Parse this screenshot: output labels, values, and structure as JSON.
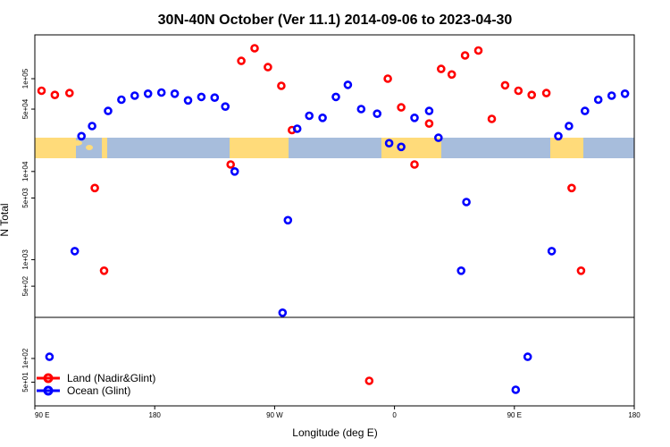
{
  "chart_data": {
    "type": "scatter",
    "title": "30N-40N October (Ver 11.1)   2014-09-06 to 2023-04-30",
    "xlabel": "Longitude (deg E)",
    "ylabel": "N Total",
    "x_ticks": [
      {
        "value": 90,
        "label": "90 E"
      },
      {
        "value": 180,
        "label": "180"
      },
      {
        "value": 270,
        "label": "90 W"
      },
      {
        "value": 360,
        "label": "0"
      },
      {
        "value": 450,
        "label": "90 E"
      },
      {
        "value": 540,
        "label": "180"
      }
    ],
    "upper_y_ticks": [
      {
        "value": 50000,
        "label": "5e+04"
      },
      {
        "value": 100000,
        "label": "1e+05"
      }
    ],
    "middle_y_ticks": [
      {
        "value": 500,
        "label": "5e+02"
      },
      {
        "value": 1000,
        "label": "1e+03"
      },
      {
        "value": 5000,
        "label": "5e+03"
      },
      {
        "value": 10000,
        "label": "1e+04"
      }
    ],
    "lower_y_ticks": [
      {
        "value": 50,
        "label": "5e+01"
      },
      {
        "value": 100,
        "label": "1e+02"
      }
    ],
    "series": [
      {
        "name": "Land (Nadir&Glint)",
        "color": "#ff0000",
        "points": [
          [
            95,
            76000
          ],
          [
            105,
            69000
          ],
          [
            116,
            72000
          ],
          [
            135,
            6500
          ],
          [
            142,
            750
          ],
          [
            237,
            12000
          ],
          [
            245,
            150000
          ],
          [
            255,
            200000
          ],
          [
            265,
            130000
          ],
          [
            275,
            85000
          ],
          [
            283,
            31000
          ],
          [
            341,
            52
          ],
          [
            355,
            100000
          ],
          [
            365,
            52000
          ],
          [
            375,
            12000
          ],
          [
            386,
            36000
          ],
          [
            395,
            125000
          ],
          [
            403,
            110000
          ],
          [
            413,
            170000
          ],
          [
            423,
            190000
          ],
          [
            433,
            40000
          ],
          [
            443,
            86000
          ],
          [
            453,
            76000
          ],
          [
            463,
            69000
          ],
          [
            474,
            72000
          ],
          [
            493,
            6500
          ],
          [
            500,
            750
          ]
        ]
      },
      {
        "name": "Ocean (Glint)",
        "color": "#0000ff",
        "points": [
          [
            101,
            105
          ],
          [
            120,
            1250
          ],
          [
            125,
            27000
          ],
          [
            133,
            34000
          ],
          [
            145,
            48000
          ],
          [
            155,
            62000
          ],
          [
            165,
            68000
          ],
          [
            175,
            71000
          ],
          [
            185,
            73000
          ],
          [
            195,
            71000
          ],
          [
            205,
            61000
          ],
          [
            215,
            66000
          ],
          [
            225,
            65000
          ],
          [
            233,
            53000
          ],
          [
            240,
            10000
          ],
          [
            276,
            250
          ],
          [
            280,
            2800
          ],
          [
            287,
            32000
          ],
          [
            296,
            43000
          ],
          [
            306,
            41000
          ],
          [
            316,
            66000
          ],
          [
            325,
            87000
          ],
          [
            335,
            50000
          ],
          [
            347,
            45000
          ],
          [
            356,
            23000
          ],
          [
            365,
            19000
          ],
          [
            375,
            41000
          ],
          [
            386,
            48000
          ],
          [
            393,
            26000
          ],
          [
            410,
            750
          ],
          [
            414,
            4500
          ],
          [
            451,
            40
          ],
          [
            460,
            105
          ],
          [
            478,
            1250
          ],
          [
            483,
            27000
          ],
          [
            491,
            34000
          ],
          [
            503,
            48000
          ],
          [
            513,
            62000
          ],
          [
            523,
            68000
          ],
          [
            533,
            71000
          ]
        ]
      }
    ],
    "legend": {
      "placement": "bottom-left"
    }
  }
}
